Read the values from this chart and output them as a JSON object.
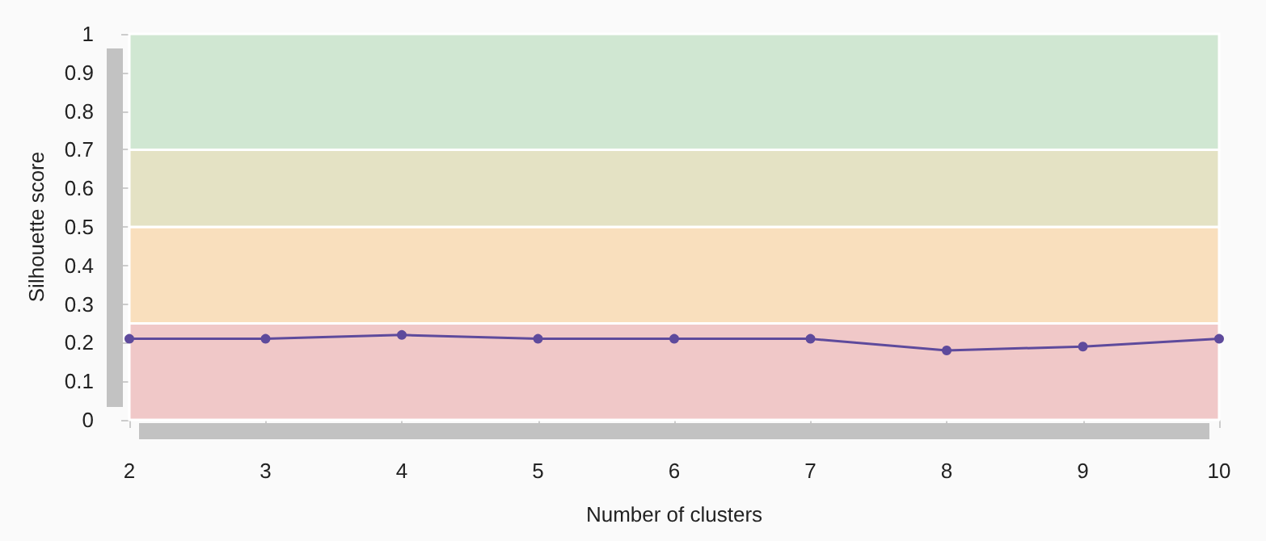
{
  "chart_data": {
    "type": "line",
    "xlabel": "Number of clusters",
    "ylabel": "Silhouette score",
    "x": [
      2,
      3,
      4,
      5,
      6,
      7,
      8,
      9,
      10
    ],
    "series": [
      {
        "color": "#5e4a9c",
        "values": [
          0.21,
          0.21,
          0.22,
          0.21,
          0.21,
          0.21,
          0.18,
          0.19,
          0.21
        ]
      }
    ],
    "xlim": [
      2,
      10
    ],
    "xticks": [
      2,
      3,
      4,
      5,
      6,
      7,
      8,
      9,
      10
    ],
    "ylim": [
      0,
      1
    ],
    "yticks": [
      0,
      0.1,
      0.2,
      0.3,
      0.4,
      0.5,
      0.6,
      0.7,
      0.8,
      0.9,
      1
    ],
    "bands": [
      {
        "axis": "y",
        "from": 0,
        "to": 0.25,
        "color": "#f0c8c8"
      },
      {
        "axis": "y",
        "from": 0.25,
        "to": 0.5,
        "color": "#f9dfbd"
      },
      {
        "axis": "y",
        "from": 0.5,
        "to": 0.7,
        "color": "#e4e2c4"
      },
      {
        "axis": "y",
        "from": 0.7,
        "to": 1,
        "color": "#d0e7d2"
      }
    ],
    "grid": false,
    "marker": "circle",
    "line_style": "solid"
  }
}
